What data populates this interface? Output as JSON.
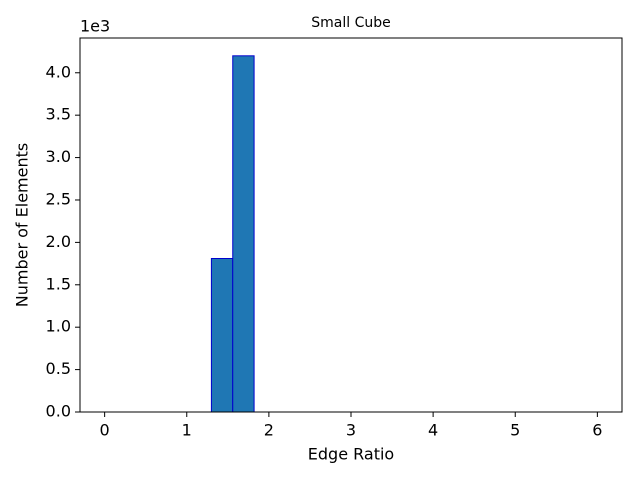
{
  "chart_data": {
    "type": "histogram",
    "title": "Small Cube",
    "xlabel": "Edge Ratio",
    "ylabel": "Number of Elements",
    "offset_label": "1e3",
    "bins": [
      1.3,
      1.56,
      1.82
    ],
    "values": [
      1810,
      4200
    ],
    "color": "#1f77b4",
    "edgecolor": "#0000cd",
    "xlim": [
      -0.3,
      6.3
    ],
    "xticks": [
      0,
      1,
      2,
      3,
      4,
      5,
      6
    ],
    "ylim": [
      0,
      4410
    ],
    "yticks": [
      {
        "value": 0,
        "label": "0.0"
      },
      {
        "value": 500,
        "label": "0.5"
      },
      {
        "value": 1000,
        "label": "1.0"
      },
      {
        "value": 1500,
        "label": "1.5"
      },
      {
        "value": 2000,
        "label": "2.0"
      },
      {
        "value": 2500,
        "label": "2.5"
      },
      {
        "value": 3000,
        "label": "3.0"
      },
      {
        "value": 3500,
        "label": "3.5"
      },
      {
        "value": 4000,
        "label": "4.0"
      }
    ],
    "grid": false
  }
}
